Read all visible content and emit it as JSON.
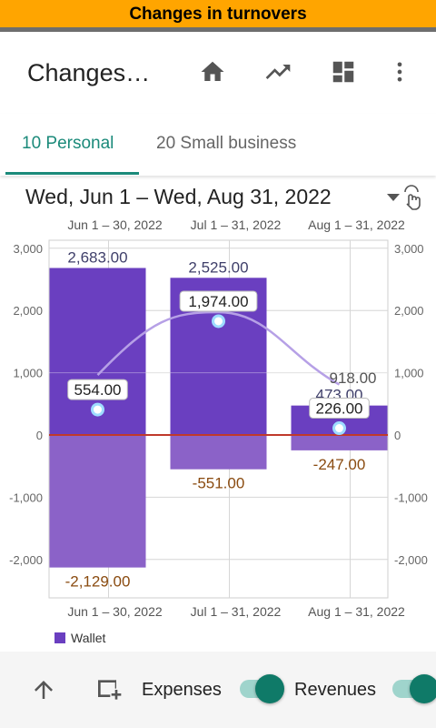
{
  "banner": {
    "title": "Changes in turnovers"
  },
  "appbar": {
    "title": "Changes…",
    "icons": [
      "home-icon",
      "trending-up-icon",
      "dashboard-icon",
      "more-vert-icon"
    ]
  },
  "tabs": [
    {
      "label": "10 Personal",
      "active": true
    },
    {
      "label": "20 Small business",
      "active": false
    }
  ],
  "period": {
    "label": "Wed, Jun 1 – Wed, Aug 31, 2022",
    "icon": "chevron-down-touch-icon"
  },
  "chart_data": {
    "type": "bar",
    "categories": [
      "Jun 1 – 30, 2022",
      "Jul 1 – 31, 2022",
      "Aug 1 – 31, 2022"
    ],
    "ylim": [
      -2500,
      3000
    ],
    "yticks": [
      3000,
      2000,
      1000,
      0,
      -1000,
      -2000
    ],
    "ytick_labels": [
      "3,000",
      "2,000",
      "1,000",
      "0",
      "-1,000",
      "-2,000"
    ],
    "grid": true,
    "legend_position": "bottom-left",
    "colors": {
      "positive": "#6a3fc0",
      "negative": "#8b62c8",
      "line": "#b6a0e6",
      "point": "#9edcff",
      "zero": "#c0392b",
      "neg_label": "#8a4b10"
    },
    "series": [
      {
        "name": "Wallet",
        "revenues": [
          2683,
          2525,
          473
        ],
        "expenses": [
          -2129,
          -551,
          -247
        ],
        "revenue_labels": [
          "2,683.00",
          "2,525.00",
          "473.00"
        ],
        "expense_labels": [
          "-2,129.00",
          "-551.00",
          "-247.00"
        ],
        "balance": [
          554,
          1974,
          226
        ],
        "balance_labels": [
          "554.00",
          "1,974.00",
          "226.00"
        ]
      }
    ],
    "extra_annotation": {
      "value": 918,
      "label": "918.00"
    }
  },
  "legend": {
    "label": "Wallet",
    "color": "#6a3fc0"
  },
  "bottombar": {
    "expenses_label": "Expenses",
    "revenues_label": "Revenues",
    "expenses_on": true,
    "revenues_on": true
  }
}
